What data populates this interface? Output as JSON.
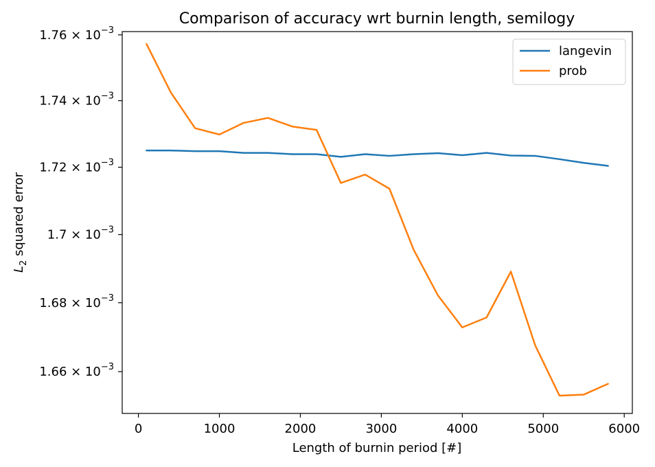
{
  "chart_data": {
    "type": "line",
    "title": "Comparison of accuracy wrt burnin length, semilogy",
    "xlabel": "Length of burnin period [#]",
    "ylabel": "L2 squared error",
    "ylabel_base": "L",
    "ylabel_sub": "2",
    "ylabel_rest": " squared error",
    "yscale": "log",
    "xlim": [
      -200,
      6100
    ],
    "ylim": [
      0.001648,
      0.001761
    ],
    "x_ticks": [
      0,
      1000,
      2000,
      3000,
      4000,
      5000,
      6000
    ],
    "x_tick_labels": [
      "0",
      "1000",
      "2000",
      "3000",
      "4000",
      "5000",
      "6000"
    ],
    "y_ticks": [
      0.00166,
      0.00168,
      0.0017,
      0.00172,
      0.00174,
      0.00176
    ],
    "y_tick_mantissas": [
      "1.66",
      "1.68",
      "1.7",
      "1.72",
      "1.74",
      "1.76"
    ],
    "y_tick_times": "×",
    "y_tick_base": "10",
    "y_tick_exp": "−3",
    "grid": false,
    "legend_position": "top-right",
    "x": [
      100,
      400,
      700,
      1000,
      1300,
      1600,
      1900,
      2200,
      2500,
      2800,
      3100,
      3400,
      3700,
      4000,
      4300,
      4600,
      4900,
      5200,
      5500,
      5800
    ],
    "series": [
      {
        "name": "langevin",
        "color": "#1f77b4",
        "values": [
          0.001725,
          0.001725,
          0.0017248,
          0.0017248,
          0.0017243,
          0.0017243,
          0.0017239,
          0.0017239,
          0.0017231,
          0.0017239,
          0.0017234,
          0.0017239,
          0.0017242,
          0.0017236,
          0.0017243,
          0.0017235,
          0.0017234,
          0.0017224,
          0.0017213,
          0.0017204
        ]
      },
      {
        "name": "prob",
        "color": "#ff7f0e",
        "values": [
          0.0017572,
          0.0017425,
          0.0017317,
          0.0017298,
          0.0017333,
          0.0017348,
          0.0017322,
          0.0017312,
          0.0017153,
          0.0017178,
          0.0017136,
          0.0016955,
          0.0016821,
          0.0016728,
          0.0016757,
          0.0016891,
          0.0016676,
          0.0016531,
          0.0016534,
          0.0016565
        ]
      }
    ]
  }
}
